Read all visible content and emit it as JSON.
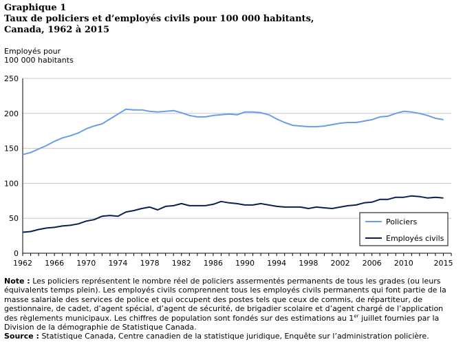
{
  "header": {
    "label": "Graphique  1",
    "title_line1": "Taux de policiers et d’employés civils pour 100 000 habitants,",
    "title_line2": "Canada, 1962 à 2015"
  },
  "chart_data": {
    "type": "line",
    "ylabel_line1": "Employés pour",
    "ylabel_line2": "100 000 habitants",
    "xlabel": "",
    "ylim": [
      0,
      250
    ],
    "yticks": [
      0,
      50,
      100,
      150,
      200,
      250
    ],
    "xlim": [
      1962,
      2016
    ],
    "xticks": [
      1962,
      1966,
      1970,
      1974,
      1978,
      1982,
      1986,
      1990,
      1994,
      1998,
      2002,
      2006,
      2010,
      2015
    ],
    "grid": "horizontal",
    "legend_position": "bottom-right",
    "x": [
      1962,
      1963,
      1964,
      1965,
      1966,
      1967,
      1968,
      1969,
      1970,
      1971,
      1972,
      1973,
      1974,
      1975,
      1976,
      1977,
      1978,
      1979,
      1980,
      1981,
      1982,
      1983,
      1984,
      1985,
      1986,
      1987,
      1988,
      1989,
      1990,
      1991,
      1992,
      1993,
      1994,
      1995,
      1996,
      1997,
      1998,
      1999,
      2000,
      2001,
      2002,
      2003,
      2004,
      2005,
      2006,
      2007,
      2008,
      2009,
      2010,
      2011,
      2012,
      2013,
      2014,
      2015,
      2016
    ],
    "series": [
      {
        "name": "Policiers",
        "color": "#6a9bec",
        "values": [
          141,
          144,
          149,
          154,
          160,
          165,
          168,
          172,
          178,
          182,
          185,
          192,
          199,
          206,
          205,
          205,
          203,
          202,
          203,
          204,
          201,
          197,
          195,
          195,
          197,
          198,
          199,
          198,
          202,
          202,
          201,
          198,
          192,
          187,
          183,
          182,
          181,
          181,
          182,
          184,
          186,
          187,
          187,
          189,
          191,
          195,
          196,
          200,
          203,
          202,
          200,
          197,
          193,
          191,
          null
        ]
      },
      {
        "name": "Employés civils",
        "color": "#0b1f4f",
        "values": [
          30,
          31,
          34,
          36,
          37,
          39,
          40,
          42,
          46,
          48,
          53,
          54,
          53,
          59,
          61,
          64,
          66,
          62,
          67,
          68,
          71,
          68,
          68,
          68,
          70,
          74,
          72,
          71,
          69,
          69,
          71,
          69,
          67,
          66,
          66,
          66,
          64,
          66,
          65,
          64,
          66,
          68,
          69,
          72,
          73,
          77,
          77,
          80,
          80,
          82,
          81,
          79,
          80,
          79,
          null
        ]
      }
    ]
  },
  "footer": {
    "note_label": "Note :",
    "note_text": " Les policiers représentent le nombre réel de policiers assermentés permanents de tous les grades (ou leurs équivalents temps plein). Les employés civils comprennent tous les employés civils permanents qui font partie de la masse salariale des services de police et qui occupent des postes tels que ceux de commis, de répartiteur, de gestionnaire, de cadet, d’agent spécial, d’agent de sécurité, de brigadier scolaire et d’agent chargé de l’application des règlements municipaux. Les chiffres de population sont fondés sur des estimations au 1",
    "note_sup": "er",
    "note_text2": " juillet fournies par la Division de la démographie de Statistique Canada.",
    "source_label": "Source :",
    "source_text": " Statistique Canada, Centre canadien de la statistique juridique, Enquête sur l’administration policière."
  }
}
